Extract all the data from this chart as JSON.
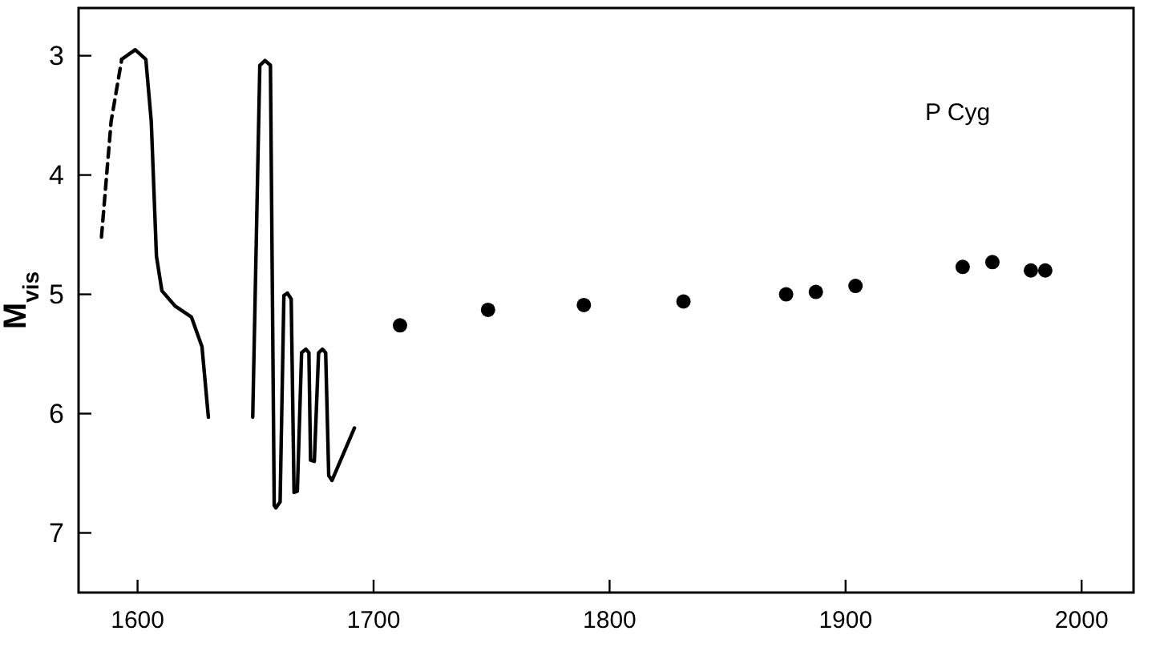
{
  "chart_data": {
    "type": "line",
    "ylabel": "M$_{vis}$",
    "annotations": [
      "P Cyg"
    ],
    "xlim": [
      1575,
      2022
    ],
    "ylim": [
      7.5,
      2.6
    ],
    "xticks": [
      1600,
      1700,
      1800,
      1900,
      2000
    ],
    "yticks": [
      3,
      4,
      5,
      6,
      7
    ],
    "grid": false,
    "marker": "none",
    "series": [
      {
        "line_style": "dashed",
        "color": "#000000",
        "x": [
          1584.7,
          1588.8,
          1593.3
        ],
        "values": [
          4.52,
          3.55,
          3.03
        ]
      },
      {
        "line_style": "solid",
        "color": "#000000",
        "x": [
          1593.3,
          1599,
          1603.5,
          1605.8,
          1608,
          1610.3,
          1616,
          1622.8,
          1627.3,
          1630
        ],
        "values": [
          3.03,
          2.95,
          3.03,
          3.55,
          4.68,
          4.97,
          5.1,
          5.19,
          5.44,
          6.03
        ]
      },
      {
        "line_style": "solid",
        "color": "#000000",
        "x": [
          1648.8,
          1651.8,
          1654,
          1656.3,
          1657.9,
          1658.6,
          1660.4,
          1662,
          1663.5,
          1665.1,
          1666.3,
          1667.7,
          1669.5,
          1671.3,
          1672.6,
          1673.3,
          1674.9,
          1676.7,
          1678.3,
          1679.7,
          1681,
          1682.4,
          1691.9
        ],
        "values": [
          6.03,
          3.08,
          3.04,
          3.08,
          6.77,
          6.79,
          6.74,
          5.01,
          4.99,
          5.04,
          6.66,
          6.65,
          5.49,
          5.46,
          5.49,
          6.39,
          6.4,
          5.49,
          5.46,
          5.49,
          6.52,
          6.56,
          6.12
        ]
      },
      {
        "type": "scatter",
        "marker": "circle",
        "color": "#000000",
        "x": [
          1711.2,
          1748.5,
          1789.1,
          1831.3,
          1874.8,
          1887.4,
          1904.2,
          1949.6,
          1962.2,
          1978.5,
          1984.6
        ],
        "values": [
          5.26,
          5.13,
          5.09,
          5.06,
          5.0,
          4.98,
          4.93,
          4.77,
          4.73,
          4.8,
          4.8
        ]
      }
    ]
  }
}
